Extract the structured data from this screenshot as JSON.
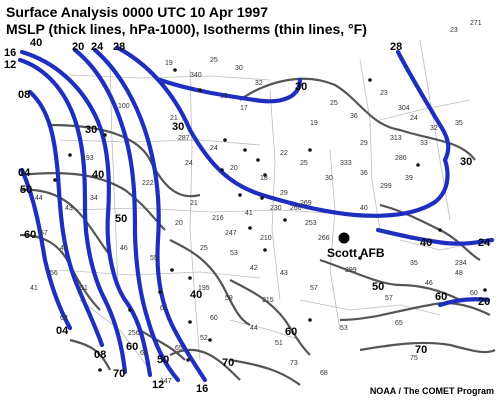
{
  "title": {
    "line1": "Surface Analysis 0000 UTC  10 Apr 1997",
    "line2": "MSLP (thick lines, hPa-1000), Isotherms (thin lines, °F)"
  },
  "credit": "NOAA / The COMET Program",
  "colors": {
    "isobar": "#1e2fc0",
    "isotherm": "#555555",
    "border": "#b5b5b5",
    "station": "#888888"
  },
  "location": {
    "name": "Scott AFB"
  },
  "isobar_labels": [
    {
      "text": "16"
    },
    {
      "text": "12"
    },
    {
      "text": "40"
    },
    {
      "text": "20"
    },
    {
      "text": "24"
    },
    {
      "text": "28"
    },
    {
      "text": "08"
    },
    {
      "text": "04"
    },
    {
      "text": "04"
    },
    {
      "text": "08"
    },
    {
      "text": "12"
    },
    {
      "text": "16"
    },
    {
      "text": "28"
    },
    {
      "text": "24"
    },
    {
      "text": "20"
    }
  ],
  "isotherm_labels": [
    {
      "text": "30"
    },
    {
      "text": "30"
    },
    {
      "text": "30"
    },
    {
      "text": "40"
    },
    {
      "text": "50"
    },
    {
      "text": "60"
    },
    {
      "text": "50"
    },
    {
      "text": "40"
    },
    {
      "text": "60"
    },
    {
      "text": "50"
    },
    {
      "text": "50"
    },
    {
      "text": "60"
    },
    {
      "text": "70"
    },
    {
      "text": "70"
    },
    {
      "text": "70"
    },
    {
      "text": "40"
    },
    {
      "text": "60"
    },
    {
      "text": "30"
    }
  ],
  "station_values": [
    "19",
    "25",
    "271",
    "23",
    "30",
    "32",
    "340",
    "19",
    "17",
    "25",
    "36",
    "23",
    "19",
    "24",
    "32",
    "35",
    "33",
    "313",
    "29",
    "22",
    "25",
    "333",
    "30",
    "36",
    "18",
    "29",
    "20",
    "24",
    "24",
    "21",
    "286",
    "39",
    "299",
    "230",
    "269",
    "41",
    "40",
    "21",
    "20",
    "55",
    "46",
    "34",
    "43",
    "57",
    "48",
    "44",
    "56",
    "41",
    "51",
    "68",
    "25",
    "53",
    "42",
    "43",
    "57",
    "299",
    "57",
    "35",
    "46",
    "48",
    "60",
    "53",
    "65",
    "44",
    "51",
    "60",
    "73",
    "68",
    "75",
    "52",
    "59",
    "61",
    "65",
    "69",
    "216",
    "210",
    "253",
    "266",
    "260",
    "247",
    "234",
    "304",
    "287",
    "256",
    "193",
    "147",
    "100",
    "222",
    "215",
    "195"
  ]
}
